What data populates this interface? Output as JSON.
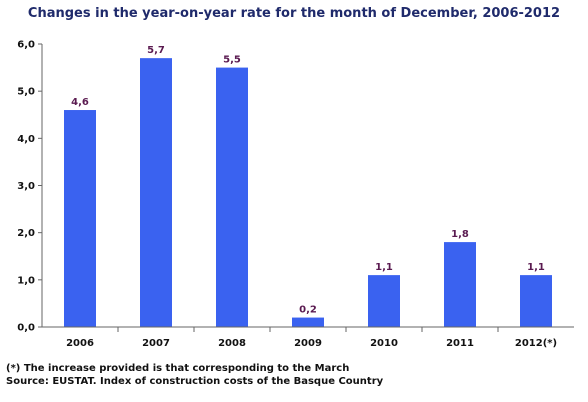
{
  "chart_data": {
    "type": "bar",
    "title": "Changes in the year-on-year rate for the month of December, 2006-2012",
    "categories": [
      "2006",
      "2007",
      "2008",
      "2009",
      "2010",
      "2011",
      "2012(*)"
    ],
    "values": [
      4.6,
      5.7,
      5.5,
      0.2,
      1.1,
      1.8,
      1.1
    ],
    "data_labels": [
      "4,6",
      "5,7",
      "5,5",
      "0,2",
      "1,1",
      "1,8",
      "1,1"
    ],
    "y_ticks": [
      "0,0",
      "1,0",
      "2,0",
      "3,0",
      "4,0",
      "5,0",
      "6,0"
    ],
    "ylim": [
      0,
      6
    ],
    "grid": false,
    "xlabel": "",
    "ylabel": "",
    "colors": {
      "bar": "#3a62f0",
      "label": "#5a1a50",
      "axis": "#666666"
    }
  },
  "footnote": "(*) The increase provided is that corresponding to the March",
  "source": "Source: EUSTAT. Index of construction costs of the Basque Country"
}
